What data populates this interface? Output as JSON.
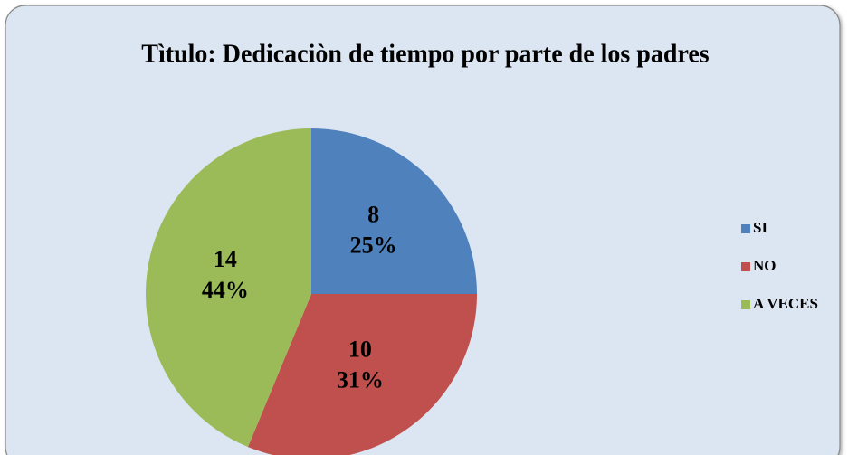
{
  "chart_data": {
    "type": "pie",
    "title": "Tìtulo: Dedicaciòn de tiempo por parte de los padres",
    "categories": [
      "SI",
      "NO",
      "A VECES"
    ],
    "values": [
      8,
      10,
      14
    ],
    "percent_labels": [
      "25%",
      "31%",
      "44%"
    ],
    "colors": [
      "#4f81bd",
      "#c0504d",
      "#9bbb59"
    ],
    "legend": "right"
  }
}
